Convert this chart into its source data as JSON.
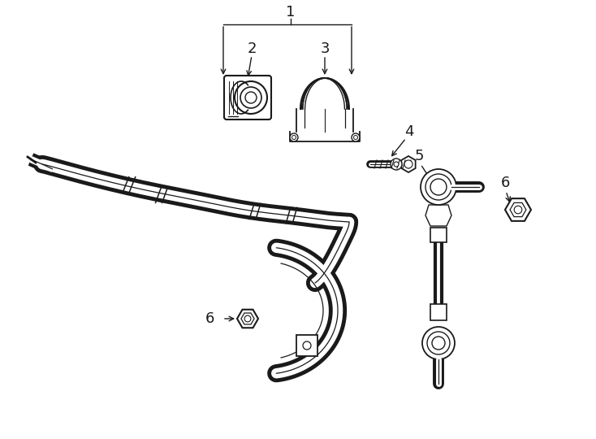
{
  "bg_color": "#ffffff",
  "line_color": "#1a1a1a",
  "fig_width": 7.34,
  "fig_height": 5.4,
  "dpi": 100
}
